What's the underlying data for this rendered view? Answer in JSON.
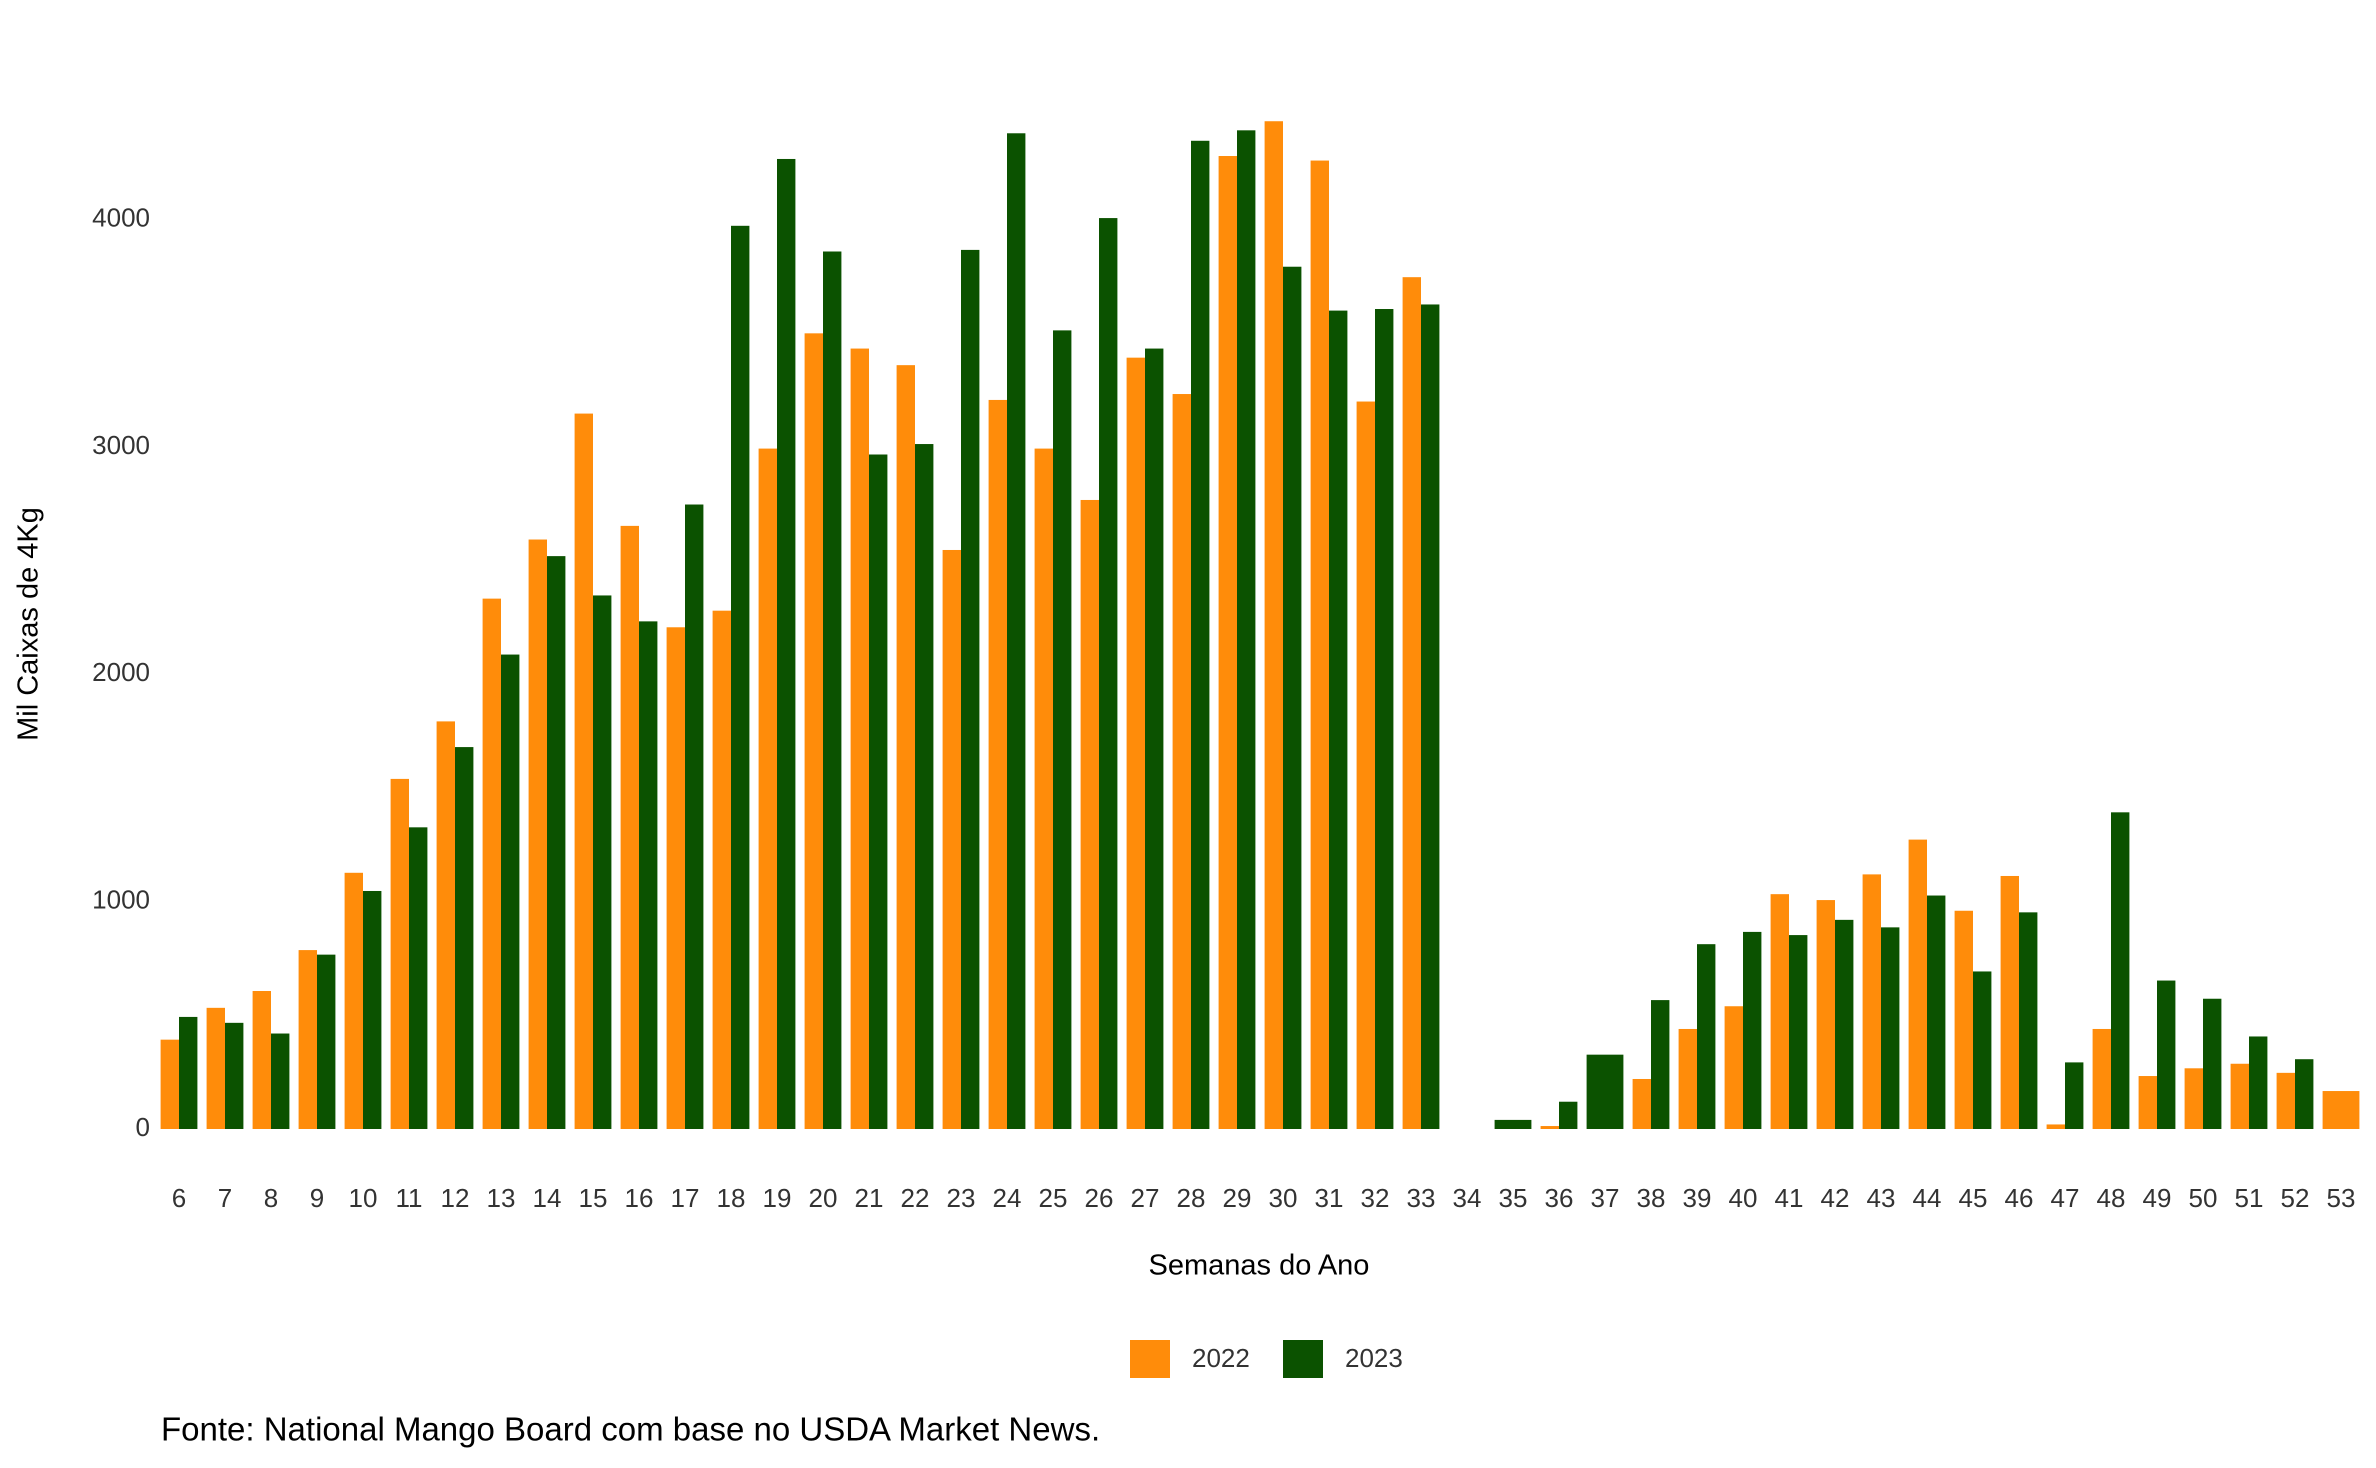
{
  "chart_data": {
    "type": "bar",
    "y_label": "Mil Caixas de 4Kg",
    "x_label": "Semanas do Ano",
    "source": "Fonte: National Mango Board com base no USDA Market News.",
    "categories": [
      "6",
      "7",
      "8",
      "9",
      "10",
      "11",
      "12",
      "13",
      "14",
      "15",
      "16",
      "17",
      "18",
      "19",
      "20",
      "21",
      "22",
      "23",
      "24",
      "25",
      "26",
      "27",
      "28",
      "29",
      "30",
      "31",
      "32",
      "33",
      "34",
      "35",
      "36",
      "37",
      "38",
      "39",
      "40",
      "41",
      "42",
      "43",
      "44",
      "45",
      "46",
      "47",
      "48",
      "49",
      "50",
      "51",
      "52",
      "53"
    ],
    "series": [
      {
        "name": "2022",
        "color": "#ff8c0a",
        "values": [
          393,
          533,
          607,
          787,
          1127,
          1540,
          1793,
          2333,
          2593,
          3147,
          2653,
          2207,
          2280,
          2993,
          3500,
          3433,
          3360,
          2547,
          3207,
          2993,
          2767,
          3393,
          3233,
          4280,
          4433,
          4260,
          3200,
          3747,
          null,
          null,
          13,
          null,
          220,
          440,
          540,
          1033,
          1007,
          1120,
          1273,
          960,
          1113,
          20,
          440,
          233,
          267,
          287,
          247,
          167
        ]
      },
      {
        "name": "2023",
        "color": "#0b5200",
        "values": [
          493,
          467,
          420,
          767,
          1047,
          1327,
          1680,
          2087,
          2520,
          2347,
          2233,
          2747,
          3973,
          4267,
          3860,
          2967,
          3013,
          3867,
          4380,
          3513,
          4007,
          3433,
          4347,
          4393,
          3793,
          3600,
          3607,
          3627,
          null,
          40,
          120,
          327,
          567,
          813,
          867,
          853,
          920,
          887,
          1027,
          693,
          953,
          293,
          1393,
          653,
          573,
          407,
          307,
          null
        ]
      }
    ],
    "ylim": [
      0,
      4500
    ],
    "yticks": [
      0,
      1000,
      2000,
      3000,
      4000
    ],
    "grid": false,
    "legend_position": "bottom"
  }
}
